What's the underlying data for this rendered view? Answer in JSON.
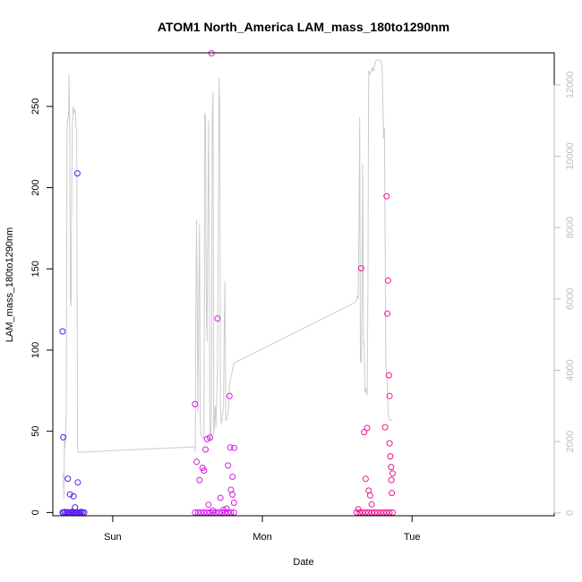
{
  "chart_data": {
    "type": "scatter",
    "title": "ATOM1 North_America LAM_mass_180to1290nm",
    "xlabel": "Date",
    "ylabel": "LAM_mass_180to1290nm",
    "x_axis_unit": "days",
    "xlim": [
      -0.4,
      2.95
    ],
    "ylim": [
      -2,
      283
    ],
    "x_ticks": [
      {
        "value": 0,
        "label": "Sun"
      },
      {
        "value": 1,
        "label": "Mon"
      },
      {
        "value": 2,
        "label": "Tue"
      }
    ],
    "y_ticks": [
      0,
      50,
      100,
      150,
      200,
      250
    ],
    "y2_ticks": [
      0,
      2000,
      4000,
      6000,
      8000,
      10000,
      12000
    ],
    "y2lim": [
      -80,
      12900
    ],
    "grid": false,
    "legend": "none",
    "colors": {
      "segment1": "#5a1bf0",
      "segment2": "#d61ae8",
      "segment3": "#ee1491",
      "line": "#cccccc",
      "right_axis": "#bdbdbd",
      "frame": "#000000"
    },
    "series": [
      {
        "color": "#5a1bf0",
        "x": [
          -0.335,
          -0.33,
          -0.32,
          -0.31,
          -0.3,
          -0.29,
          -0.28,
          -0.27,
          -0.26,
          -0.25,
          -0.24,
          -0.23,
          -0.22,
          -0.21,
          -0.2,
          -0.19,
          -0.335,
          -0.33,
          -0.3,
          -0.285,
          -0.262,
          -0.251,
          -0.236,
          -0.233
        ],
        "y": [
          0,
          0,
          0.3,
          0,
          0.2,
          0,
          0,
          0.5,
          0,
          0,
          0.2,
          0,
          0,
          0.4,
          0,
          0,
          111.5,
          46.3,
          20.8,
          11.1,
          10.0,
          3.2,
          208.8,
          18.5
        ]
      },
      {
        "color": "#d61ae8",
        "x": [
          0.55,
          0.57,
          0.59,
          0.61,
          0.63,
          0.65,
          0.67,
          0.69,
          0.71,
          0.73,
          0.75,
          0.77,
          0.79,
          0.81,
          0.55,
          0.56,
          0.58,
          0.6,
          0.61,
          0.62,
          0.63,
          0.64,
          0.65,
          0.66,
          0.67,
          0.7,
          0.72,
          0.74,
          0.76,
          0.77,
          0.78,
          0.785,
          0.79,
          0.8,
          0.8,
          0.81,
          0.812
        ],
        "y": [
          0,
          0,
          0,
          0,
          0,
          0,
          0,
          0,
          0,
          0,
          0,
          0,
          0,
          0,
          66.7,
          31.2,
          20.0,
          27.5,
          25.8,
          38.8,
          45.2,
          4.8,
          46.2,
          282.7,
          1.2,
          119.4,
          9.0,
          1.6,
          2.4,
          28.9,
          71.7,
          40.0,
          14.0,
          22.0,
          11.0,
          6.0,
          39.8
        ]
      },
      {
        "color": "#ee1491",
        "x": [
          1.63,
          1.65,
          1.67,
          1.69,
          1.71,
          1.73,
          1.75,
          1.77,
          1.79,
          1.81,
          1.83,
          1.85,
          1.87,
          1.64,
          1.66,
          1.68,
          1.69,
          1.7,
          1.71,
          1.72,
          1.73,
          1.82,
          1.83,
          1.835,
          1.84,
          1.845,
          1.85,
          1.85,
          1.855,
          1.86,
          1.862,
          1.865,
          1.87
        ],
        "y": [
          0,
          0,
          0,
          0,
          0,
          0,
          0,
          0,
          0,
          0,
          0,
          0,
          0,
          2.0,
          150.3,
          49.5,
          20.7,
          52.0,
          13.5,
          10.5,
          5.0,
          52.5,
          194.7,
          122.4,
          142.8,
          84.5,
          71.7,
          42.6,
          34.6,
          28.0,
          20.0,
          12.0,
          24.0
        ]
      }
    ],
    "secondary_line": {
      "color": "#cccccc",
      "x": [
        -0.33,
        -0.325,
        -0.322,
        -0.318,
        -0.31,
        -0.305,
        -0.3,
        -0.295,
        -0.292,
        -0.287,
        -0.283,
        -0.278,
        -0.275,
        -0.27,
        -0.265,
        -0.26,
        -0.255,
        -0.25,
        -0.245,
        -0.24,
        -0.235,
        -0.23,
        -0.228,
        -0.225,
        -0.222,
        -0.22,
        0.54,
        0.55,
        0.552,
        0.555,
        0.56,
        0.565,
        0.57,
        0.575,
        0.58,
        0.585,
        0.59,
        0.6,
        0.61,
        0.615,
        0.62,
        0.625,
        0.63,
        0.64,
        0.645,
        0.65,
        0.655,
        0.66,
        0.665,
        0.67,
        0.675,
        0.68,
        0.685,
        0.69,
        0.7,
        0.71,
        0.715,
        0.72,
        0.725,
        0.73,
        0.74,
        0.745,
        0.75,
        0.755,
        0.76,
        0.765,
        0.77,
        0.775,
        0.78,
        0.79,
        0.8,
        0.81,
        1.62,
        1.63,
        1.635,
        1.64,
        1.645,
        1.65,
        1.655,
        1.66,
        1.665,
        1.67,
        1.675,
        1.68,
        1.685,
        1.69,
        1.7,
        1.705,
        1.71,
        1.72,
        1.73,
        1.735,
        1.74,
        1.745,
        1.75,
        1.755,
        1.76,
        1.77,
        1.78,
        1.79,
        1.8,
        1.81,
        1.815,
        1.82,
        1.825,
        1.83,
        1.835,
        1.84,
        1.85,
        1.86,
        1.87
      ],
      "y": [
        1100,
        400,
        2200,
        1800,
        2800,
        10800,
        11100,
        11100,
        12300,
        10700,
        6000,
        5800,
        8200,
        10700,
        11400,
        11200,
        11300,
        11300,
        10800,
        10700,
        1800,
        1700,
        1700,
        1700,
        1700,
        1700,
        1850,
        1850,
        1700,
        5100,
        8200,
        5800,
        2800,
        6000,
        8100,
        2500,
        2200,
        2100,
        2100,
        11200,
        11100,
        6000,
        4800,
        11000,
        7700,
        2100,
        2000,
        3000,
        11000,
        11800,
        2200,
        2500,
        3000,
        2400,
        4000,
        12200,
        11300,
        3000,
        2500,
        2600,
        3000,
        5100,
        6500,
        2600,
        2600,
        2700,
        2800,
        3000,
        3600,
        3800,
        4000,
        4200,
        5900,
        6000,
        6100,
        6000,
        8000,
        11100,
        4300,
        4200,
        6000,
        9800,
        4700,
        4800,
        3400,
        3500,
        3300,
        6200,
        12400,
        12300,
        12400,
        12500,
        12400,
        12400,
        12600,
        12600,
        12700,
        12700,
        12700,
        12700,
        12500,
        10500,
        10800,
        7800,
        4100,
        3900,
        3500,
        2800,
        2600,
        2600,
        2600
      ]
    }
  }
}
